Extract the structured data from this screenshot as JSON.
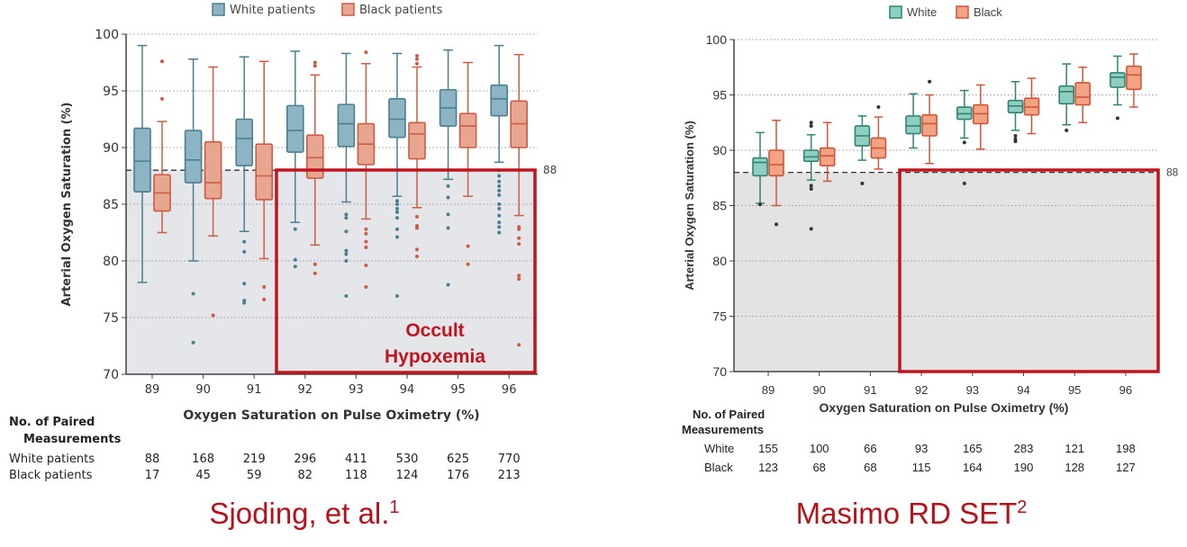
{
  "chart_data": [
    {
      "type": "box",
      "legend": [
        "White patients",
        "Black patients"
      ],
      "legend_placement": "top-center",
      "ylabel": "Arterial Oxygen Saturation (%)",
      "xlabel": "Oxygen Saturation on Pulse Oximetry (%)",
      "ylim": [
        70,
        100
      ],
      "yticks": [
        70,
        75,
        80,
        85,
        90,
        95,
        100
      ],
      "categories": [
        "89",
        "90",
        "91",
        "92",
        "93",
        "94",
        "95",
        "96"
      ],
      "threshold": 88,
      "threshold_label": "88",
      "annotation": [
        "Occult",
        "Hypoxemia"
      ],
      "colors": {
        "white_stroke": "#4a7f93",
        "white_fill": "#8db4c3",
        "black_stroke": "#cf5b45",
        "black_fill": "#e7a690",
        "shade": "#e5e6e9",
        "annotation": "#c0141f"
      },
      "series": [
        {
          "name": "White patients",
          "boxes": [
            {
              "whisker_low": 78.1,
              "q1": 86.1,
              "median": 88.8,
              "q3": 91.7,
              "whisker_high": 99.0,
              "outliers": []
            },
            {
              "whisker_low": 80.0,
              "q1": 86.9,
              "median": 88.9,
              "q3": 91.5,
              "whisker_high": 97.8,
              "outliers": [
                77.1,
                72.8
              ]
            },
            {
              "whisker_low": 82.6,
              "q1": 88.4,
              "median": 90.8,
              "q3": 92.5,
              "whisker_high": 98.0,
              "outliers": [
                81.7,
                80.8,
                78.0,
                76.5,
                76.3
              ]
            },
            {
              "whisker_low": 83.4,
              "q1": 89.6,
              "median": 91.5,
              "q3": 93.7,
              "whisker_high": 98.5,
              "outliers": [
                82.8,
                80.1,
                79.5
              ]
            },
            {
              "whisker_low": 85.2,
              "q1": 90.1,
              "median": 92.1,
              "q3": 93.8,
              "whisker_high": 98.3,
              "outliers": [
                84.1,
                83.8,
                82.6,
                80.9,
                80.6,
                80.0,
                76.9
              ]
            },
            {
              "whisker_low": 85.7,
              "q1": 90.9,
              "median": 92.5,
              "q3": 94.3,
              "whisker_high": 98.3,
              "outliers": [
                85.3,
                85.0,
                84.6,
                84.3,
                83.8,
                82.8,
                82.1,
                76.9
              ]
            },
            {
              "whisker_low": 87.2,
              "q1": 91.9,
              "median": 93.5,
              "q3": 95.1,
              "whisker_high": 98.6,
              "outliers": [
                86.6,
                85.6,
                84.1,
                82.9,
                77.9
              ]
            },
            {
              "whisker_low": 88.7,
              "q1": 92.8,
              "median": 94.3,
              "q3": 95.5,
              "whisker_high": 99.0,
              "outliers": [
                88.0,
                87.5,
                87.0,
                86.6,
                86.2,
                85.8,
                85.0,
                84.6,
                84.0,
                83.4,
                83.0,
                82.5
              ]
            }
          ]
        },
        {
          "name": "Black patients",
          "boxes": [
            {
              "whisker_low": 82.5,
              "q1": 84.4,
              "median": 86.0,
              "q3": 87.6,
              "whisker_high": 92.3,
              "outliers": [
                97.6,
                94.3
              ]
            },
            {
              "whisker_low": 82.2,
              "q1": 85.5,
              "median": 86.9,
              "q3": 90.5,
              "whisker_high": 97.1,
              "outliers": [
                75.2
              ]
            },
            {
              "whisker_low": 80.2,
              "q1": 85.4,
              "median": 87.5,
              "q3": 90.3,
              "whisker_high": 97.6,
              "outliers": [
                77.7,
                76.6
              ]
            },
            {
              "whisker_low": 81.4,
              "q1": 87.3,
              "median": 89.1,
              "q3": 91.1,
              "whisker_high": 96.4,
              "outliers": [
                97.5,
                97.2,
                79.7,
                78.9
              ]
            },
            {
              "whisker_low": 83.7,
              "q1": 88.5,
              "median": 90.3,
              "q3": 92.1,
              "whisker_high": 97.4,
              "outliers": [
                98.4,
                82.8,
                82.4,
                81.7,
                81.2,
                79.6,
                77.7
              ]
            },
            {
              "whisker_low": 84.7,
              "q1": 89.0,
              "median": 91.2,
              "q3": 92.2,
              "whisker_high": 97.1,
              "outliers": [
                98.1,
                97.8,
                97.4,
                83.9,
                83.1,
                82.9,
                81.0,
                80.4
              ]
            },
            {
              "whisker_low": 85.7,
              "q1": 90.0,
              "median": 91.9,
              "q3": 93.0,
              "whisker_high": 97.5,
              "outliers": [
                81.3,
                79.7
              ]
            },
            {
              "whisker_low": 84.0,
              "q1": 90.0,
              "median": 92.1,
              "q3": 94.1,
              "whisker_high": 98.2,
              "outliers": [
                83.0,
                82.8,
                82.0,
                81.5,
                78.7,
                78.4,
                72.6
              ]
            }
          ]
        }
      ],
      "table": {
        "title": [
          "No. of Paired",
          "Measurements"
        ],
        "rows": [
          {
            "label": "White patients",
            "values": [
              "88",
              "168",
              "219",
              "296",
              "411",
              "530",
              "625",
              "770"
            ]
          },
          {
            "label": "Black patients",
            "values": [
              "17",
              "45",
              "59",
              "82",
              "118",
              "124",
              "176",
              "213"
            ]
          }
        ]
      },
      "caption": {
        "text": "Sjoding, et al.",
        "sup": "1"
      }
    },
    {
      "type": "box",
      "legend": [
        "White",
        "Black"
      ],
      "legend_placement": "top-center",
      "ylabel": "Arterial Oxygen Saturation (%)",
      "xlabel": "Oxygen Saturation on Pulse Oximetry (%)",
      "ylim": [
        70,
        100
      ],
      "yticks": [
        70,
        75,
        80,
        85,
        90,
        95,
        100
      ],
      "categories": [
        "89",
        "90",
        "91",
        "92",
        "93",
        "94",
        "95",
        "96"
      ],
      "threshold": 88,
      "threshold_label": "88",
      "annotation": [],
      "colors": {
        "white_stroke": "#2f8474",
        "white_fill": "#8fcfc1",
        "black_stroke": "#cf5638",
        "black_fill": "#f3a384",
        "shade": "#e3e3e3",
        "annotation": "#c0141f"
      },
      "series": [
        {
          "name": "White",
          "boxes": [
            {
              "whisker_low": 85.2,
              "q1": 87.7,
              "median": 88.9,
              "q3": 89.3,
              "whisker_high": 91.6,
              "outliers": [
                85.1
              ]
            },
            {
              "whisker_low": 87.3,
              "q1": 89.0,
              "median": 89.4,
              "q3": 90.0,
              "whisker_high": 91.4,
              "outliers": [
                92.5,
                92.2,
                86.8,
                86.5,
                82.9
              ]
            },
            {
              "whisker_low": 89.1,
              "q1": 90.4,
              "median": 91.3,
              "q3": 92.2,
              "whisker_high": 93.1,
              "outliers": [
                87.0
              ]
            },
            {
              "whisker_low": 90.2,
              "q1": 91.5,
              "median": 92.2,
              "q3": 93.1,
              "whisker_high": 95.1,
              "outliers": []
            },
            {
              "whisker_low": 91.1,
              "q1": 92.8,
              "median": 93.3,
              "q3": 93.9,
              "whisker_high": 95.4,
              "outliers": [
                90.7,
                87.0
              ]
            },
            {
              "whisker_low": 91.8,
              "q1": 93.4,
              "median": 94.0,
              "q3": 94.5,
              "whisker_high": 96.2,
              "outliers": [
                91.3,
                91.0,
                90.8
              ]
            },
            {
              "whisker_low": 92.3,
              "q1": 94.2,
              "median": 95.3,
              "q3": 95.8,
              "whisker_high": 97.8,
              "outliers": [
                91.8
              ]
            },
            {
              "whisker_low": 94.1,
              "q1": 95.7,
              "median": 96.6,
              "q3": 97.0,
              "whisker_high": 98.5,
              "outliers": [
                92.9
              ]
            }
          ]
        },
        {
          "name": "Black",
          "boxes": [
            {
              "whisker_low": 85.0,
              "q1": 87.7,
              "median": 88.7,
              "q3": 90.0,
              "whisker_high": 92.7,
              "outliers": [
                83.3
              ]
            },
            {
              "whisker_low": 87.2,
              "q1": 88.6,
              "median": 89.5,
              "q3": 90.2,
              "whisker_high": 92.5,
              "outliers": []
            },
            {
              "whisker_low": 88.3,
              "q1": 89.3,
              "median": 90.2,
              "q3": 91.1,
              "whisker_high": 93.0,
              "outliers": [
                93.9
              ]
            },
            {
              "whisker_low": 88.8,
              "q1": 91.3,
              "median": 92.4,
              "q3": 93.2,
              "whisker_high": 95.0,
              "outliers": [
                96.2
              ]
            },
            {
              "whisker_low": 90.1,
              "q1": 92.4,
              "median": 93.3,
              "q3": 94.1,
              "whisker_high": 95.9,
              "outliers": []
            },
            {
              "whisker_low": 91.5,
              "q1": 93.2,
              "median": 93.9,
              "q3": 94.7,
              "whisker_high": 96.5,
              "outliers": []
            },
            {
              "whisker_low": 92.5,
              "q1": 94.1,
              "median": 94.8,
              "q3": 96.1,
              "whisker_high": 97.5,
              "outliers": []
            },
            {
              "whisker_low": 93.9,
              "q1": 95.5,
              "median": 96.8,
              "q3": 97.6,
              "whisker_high": 98.7,
              "outliers": []
            }
          ]
        }
      ],
      "table": {
        "title": [
          "No. of Paired",
          "Measurements"
        ],
        "rows": [
          {
            "label": "White",
            "values": [
              "155",
              "100",
              "66",
              "93",
              "165",
              "283",
              "121",
              "198"
            ]
          },
          {
            "label": "Black",
            "values": [
              "123",
              "68",
              "68",
              "115",
              "164",
              "190",
              "128",
              "127"
            ]
          }
        ]
      },
      "caption": {
        "text": "Masimo RD SET",
        "sup": "2"
      }
    }
  ]
}
